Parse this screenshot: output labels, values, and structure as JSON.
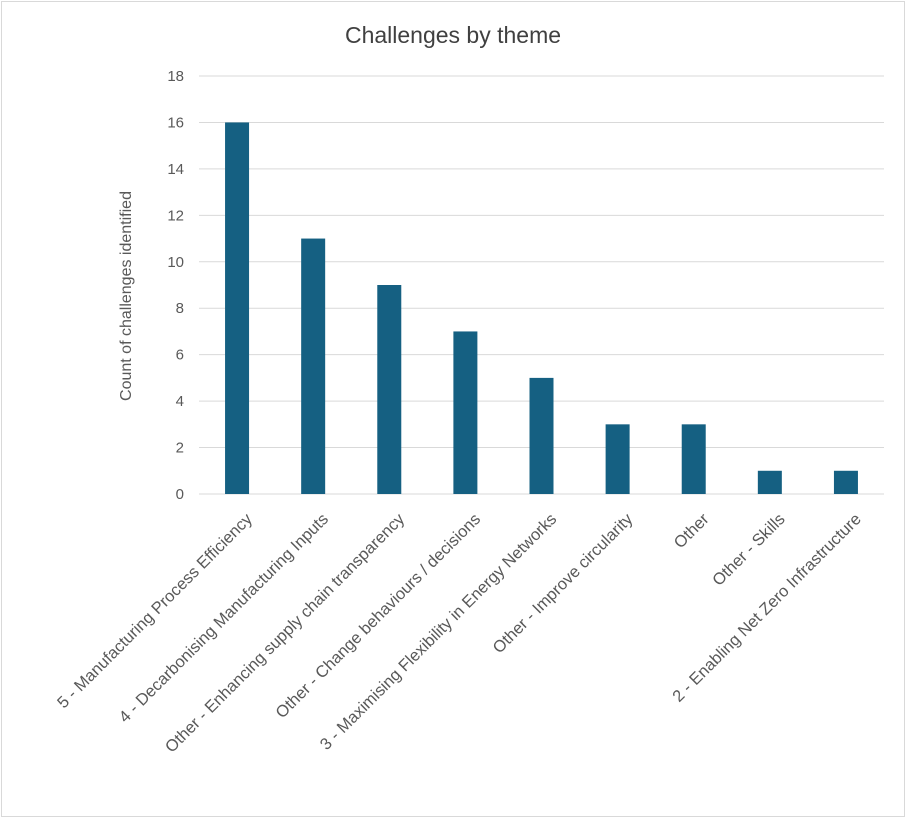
{
  "chart_data": {
    "type": "bar",
    "title": "Challenges by theme",
    "xlabel": "",
    "ylabel": "Count of challenges identified",
    "categories": [
      "5 - Manufacturing Process Efficiency",
      "4 - Decarbonising Manufacturing Inputs",
      "Other - Enhancing supply chain transparency",
      "Other - Change behaviours / decisions",
      "3 - Maximising Flexibility in Energy Networks",
      "Other - Improve circularity",
      "Other",
      "Other - Skills",
      "2 - Enabling Net Zero Infrastructure"
    ],
    "values": [
      16,
      11,
      9,
      7,
      5,
      3,
      3,
      1,
      1
    ],
    "ylim": [
      0,
      18
    ],
    "yticks": [
      "0",
      "2",
      "4",
      "6",
      "8",
      "10",
      "12",
      "14",
      "16",
      "18"
    ],
    "grid": true,
    "legend": "none",
    "bar_color": "#156082",
    "grid_color": "#d9d9d9"
  }
}
